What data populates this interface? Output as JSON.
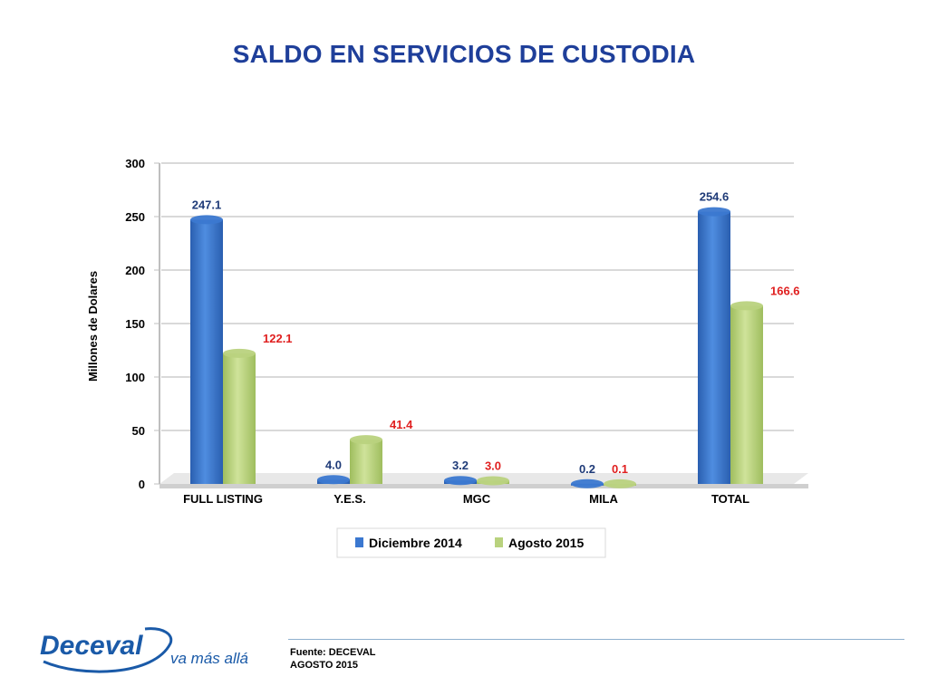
{
  "slide": {
    "title": "SALDO EN SERVICIOS DE CUSTODIA",
    "source_line1": "Fuente: DECEVAL",
    "source_line2": "AGOSTO 2015",
    "logo_text": "Deceval",
    "logo_tagline": "va más allá"
  },
  "colors": {
    "title": "#1f3f9a",
    "series1": "#3b78d0",
    "series2": "#b9d27e",
    "label1": "#1f3b78",
    "label2": "#e02020",
    "grid": "#d9d9d9",
    "logo": "#1a5aa8"
  },
  "chart_data": {
    "type": "bar",
    "title": "",
    "xlabel": "",
    "ylabel": "Millones  de Dolares",
    "ylim": [
      0,
      300
    ],
    "yticks": [
      0,
      50,
      100,
      150,
      200,
      250,
      300
    ],
    "grid": true,
    "legend_position": "bottom",
    "categories": [
      "FULL LISTING",
      "Y.E.S.",
      "MGC",
      "MILA",
      "TOTAL"
    ],
    "series": [
      {
        "name": "Diciembre 2014",
        "values": [
          247.1,
          4.0,
          3.2,
          0.2,
          254.6
        ],
        "labels": [
          "247.1",
          "4.0",
          "3.2",
          "0.2",
          "254.6"
        ]
      },
      {
        "name": "Agosto 2015",
        "values": [
          122.1,
          41.4,
          3.0,
          0.1,
          166.6
        ],
        "labels": [
          "122.1",
          "41.4",
          "3.0",
          "0.1",
          "166.6"
        ]
      }
    ]
  }
}
